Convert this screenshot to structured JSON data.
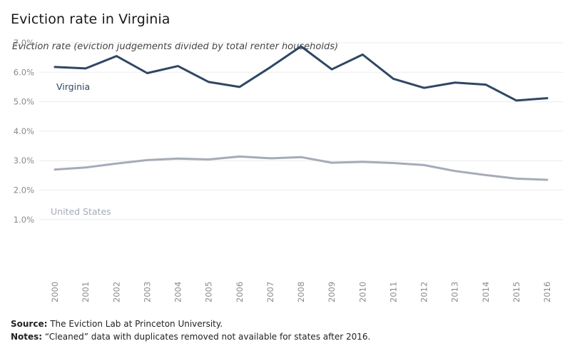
{
  "header": {
    "title": "Eviction rate in Virginia",
    "subtitle": "Eviction rate (eviction judgements divided by total renter households)"
  },
  "footer": {
    "source_label": "Source:",
    "source_text": " The Eviction Lab at Princeton University.",
    "notes_label": "Notes:",
    "notes_text": " “Cleaned” data with duplicates removed not available for states after 2016."
  },
  "colors": {
    "virginia": "#2f4763",
    "united_states": "#a5abb8",
    "grid": "#ececec",
    "tick_text": "#8a8a8a"
  },
  "chart_data": {
    "type": "line",
    "title": "Eviction rate in Virginia",
    "subtitle": "Eviction rate (eviction judgements divided by total renter households)",
    "x": [
      2000,
      2001,
      2002,
      2003,
      2004,
      2005,
      2006,
      2007,
      2008,
      2009,
      2010,
      2011,
      2012,
      2013,
      2014,
      2015,
      2016
    ],
    "yticks": [
      "1.0%",
      "2.0%",
      "3.0%",
      "4.0%",
      "5.0%",
      "6.0%",
      "7.0%"
    ],
    "ylim": [
      0,
      7.0
    ],
    "grid": true,
    "series": [
      {
        "name": "Virginia",
        "color": "#2f4763",
        "values": [
          6.18,
          6.13,
          6.55,
          5.97,
          6.21,
          5.67,
          5.5,
          6.17,
          6.88,
          6.1,
          6.6,
          5.78,
          5.47,
          5.65,
          5.58,
          5.04,
          5.12
        ]
      },
      {
        "name": "United States",
        "color": "#a5abb8",
        "values": [
          2.7,
          2.77,
          2.9,
          3.02,
          3.07,
          3.04,
          3.14,
          3.08,
          3.12,
          2.93,
          2.96,
          2.92,
          2.85,
          2.65,
          2.51,
          2.39,
          2.35
        ]
      }
    ]
  }
}
